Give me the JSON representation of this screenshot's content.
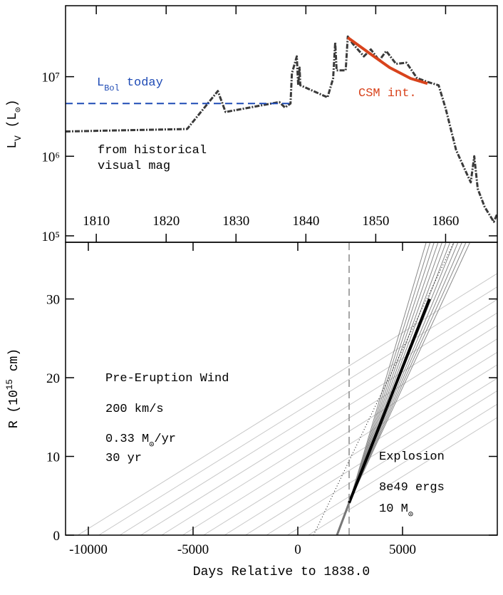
{
  "chart_data": [
    {
      "type": "line",
      "log_y": true,
      "xlim": [
        1805.6,
        1867.4
      ],
      "ylim": [
        83000,
        78000000
      ],
      "xticks": [
        1810,
        1820,
        1830,
        1840,
        1850,
        1860
      ],
      "yticks": [
        {
          "value": 100000,
          "label": "10⁵"
        },
        {
          "value": 1000000,
          "label": "10⁶"
        },
        {
          "value": 10000000,
          "label": "10⁷"
        }
      ],
      "y_label": [
        {
          "text": "L"
        },
        {
          "text": "V",
          "sub": true
        },
        {
          "text": " (L"
        },
        {
          "text": "⊙",
          "sub": true
        },
        {
          "text": ")"
        }
      ],
      "annotations": [
        {
          "parts": [
            {
              "text": "L"
            },
            {
              "text": "Bol",
              "sub": true
            },
            {
              "text": " today"
            }
          ],
          "color": "#1f4bb5"
        },
        {
          "parts": [
            {
              "text": "CSM int."
            }
          ],
          "color": "#d8431c"
        },
        {
          "parts": [
            {
              "text": "from historical"
            }
          ],
          "color": "#000000"
        },
        {
          "parts": [
            {
              "text": "visual mag"
            }
          ],
          "color": "#000000"
        }
      ],
      "series": [
        {
          "color": "#3a3a3a",
          "width": 3,
          "dash": "7 2 2 2",
          "x": [
            1805.6,
            1823,
            1827.4,
            1828.5,
            1836.2,
            1837,
            1837.8,
            1838,
            1838.7,
            1838.9,
            1839.1,
            1839.2,
            1843.1,
            1843.9,
            1844.2,
            1844.4,
            1845.7,
            1846,
            1846.7,
            1848.3,
            1849.3,
            1850.5,
            1851.5,
            1852.9,
            1854.4,
            1855.9,
            1857.4,
            1859,
            1860,
            1861.5,
            1862.6,
            1863.6,
            1864.1,
            1864.6,
            1865.6,
            1866.9,
            1867.4
          ],
          "values": [
            2050000,
            2200000,
            6600000,
            3600000,
            4800000,
            4100000,
            4600000,
            11000000,
            18000000,
            7800000,
            13000000,
            7800000,
            5500000,
            9500000,
            27000000,
            12000000,
            12000000,
            32000000,
            26000000,
            18000000,
            22000000,
            16000000,
            21000000,
            14500000,
            15000000,
            9600000,
            8600000,
            7800000,
            4000000,
            1200000,
            730000,
            470000,
            1000000,
            390000,
            230000,
            150000,
            190000
          ]
        },
        {
          "color": "#d8431c",
          "width": 4,
          "x": [
            1846,
            1849,
            1852,
            1855,
            1857.4
          ],
          "values": [
            31000000,
            20000000,
            13000000,
            9500000,
            8200000
          ]
        },
        {
          "color": "#1f4bb5",
          "width": 2,
          "dash": "10 6",
          "x": [
            1805.6,
            1838.1
          ],
          "values": [
            4600000,
            4600000
          ]
        }
      ]
    },
    {
      "type": "line",
      "log_y": false,
      "xlim": [
        -11088,
        9524
      ],
      "ylim": [
        0,
        37.2
      ],
      "xticks": [
        -10000,
        -5000,
        0,
        5000
      ],
      "yticks": [
        0,
        10,
        20,
        30
      ],
      "x_label": "Days Relative to 1838.0",
      "y_label": [
        {
          "text": "R (10"
        },
        {
          "text": "15",
          "sup": true
        },
        {
          "text": " cm)"
        }
      ],
      "annotations": [
        {
          "parts": [
            {
              "text": "Pre-Eruption Wind"
            }
          ],
          "color": "#000000"
        },
        {
          "parts": [
            {
              "text": "200 km/s"
            }
          ],
          "color": "#000000"
        },
        {
          "parts": [
            {
              "text": "0.33 M"
            },
            {
              "text": "⊙",
              "sub": true
            },
            {
              "text": "/yr"
            }
          ],
          "color": "#000000"
        },
        {
          "parts": [
            {
              "text": "30 yr"
            }
          ],
          "color": "#000000"
        },
        {
          "parts": [
            {
              "text": "Explosion"
            }
          ],
          "color": "#000000"
        },
        {
          "parts": [
            {
              "text": "8e49 ergs"
            }
          ],
          "color": "#000000"
        },
        {
          "parts": [
            {
              "text": "10 M"
            },
            {
              "text": "⊙",
              "sub": true
            }
          ],
          "color": "#000000"
        }
      ],
      "series": [
        {
          "color": "#c8c8c8",
          "width": 1,
          "x": [
            -10500,
            9500
          ],
          "values": [
            0,
            33.2
          ]
        },
        {
          "color": "#c8c8c8",
          "width": 1,
          "x": [
            -9500,
            9500
          ],
          "values": [
            0,
            31.5
          ]
        },
        {
          "color": "#c8c8c8",
          "width": 1,
          "x": [
            -8500,
            9500
          ],
          "values": [
            0,
            29.9
          ]
        },
        {
          "color": "#c8c8c8",
          "width": 1,
          "x": [
            -7500,
            9500
          ],
          "values": [
            0,
            28.2
          ]
        },
        {
          "color": "#c8c8c8",
          "width": 1,
          "x": [
            -6500,
            9500
          ],
          "values": [
            0,
            26.6
          ]
        },
        {
          "color": "#c8c8c8",
          "width": 1,
          "x": [
            -5500,
            9500
          ],
          "values": [
            0,
            24.9
          ]
        },
        {
          "color": "#c8c8c8",
          "width": 1,
          "x": [
            -4500,
            9500
          ],
          "values": [
            0,
            23.2
          ]
        },
        {
          "color": "#c8c8c8",
          "width": 1,
          "x": [
            -3500,
            9500
          ],
          "values": [
            0,
            21.6
          ]
        },
        {
          "color": "#c8c8c8",
          "width": 1,
          "x": [
            -2500,
            9500
          ],
          "values": [
            0,
            19.9
          ]
        },
        {
          "color": "#c8c8c8",
          "width": 1,
          "x": [
            -1500,
            9500
          ],
          "values": [
            0,
            18.3
          ]
        },
        {
          "color": "#c8c8c8",
          "width": 1,
          "x": [
            -500,
            9500
          ],
          "values": [
            0,
            16.6
          ]
        },
        {
          "color": "#c8c8c8",
          "width": 1,
          "x": [
            500,
            9500
          ],
          "values": [
            0,
            14.9
          ]
        },
        {
          "color": "#888888",
          "width": 1,
          "x": [
            2450,
            6130
          ],
          "values": [
            4.1,
            37.2
          ]
        },
        {
          "color": "#888888",
          "width": 1,
          "x": [
            2450,
            6320
          ],
          "values": [
            4.1,
            37.2
          ]
        },
        {
          "color": "#888888",
          "width": 1,
          "x": [
            2450,
            6510
          ],
          "values": [
            4.1,
            37.2
          ]
        },
        {
          "color": "#888888",
          "width": 1,
          "x": [
            2450,
            6700
          ],
          "values": [
            4.1,
            37.2
          ]
        },
        {
          "color": "#888888",
          "width": 1,
          "x": [
            2450,
            6890
          ],
          "values": [
            4.1,
            37.2
          ]
        },
        {
          "color": "#888888",
          "width": 1,
          "x": [
            2450,
            7080
          ],
          "values": [
            4.1,
            37.2
          ]
        },
        {
          "color": "#888888",
          "width": 1,
          "x": [
            2450,
            7270
          ],
          "values": [
            4.1,
            37.2
          ]
        },
        {
          "color": "#888888",
          "width": 1,
          "x": [
            2450,
            7460
          ],
          "values": [
            4.1,
            37.2
          ]
        },
        {
          "color": "#888888",
          "width": 1,
          "x": [
            2450,
            7650
          ],
          "values": [
            4.1,
            37.2
          ]
        },
        {
          "color": "#888888",
          "width": 1,
          "x": [
            2450,
            7840
          ],
          "values": [
            4.1,
            37.2
          ]
        },
        {
          "color": "#888888",
          "width": 1,
          "x": [
            2450,
            8030
          ],
          "values": [
            4.1,
            37.2
          ]
        },
        {
          "color": "#888888",
          "width": 1,
          "x": [
            2450,
            8220
          ],
          "values": [
            4.1,
            37.2
          ]
        },
        {
          "color": "#777777",
          "width": 3,
          "x": [
            1870,
            2450
          ],
          "values": [
            0,
            4.1
          ]
        },
        {
          "color": "#000000",
          "width": 4,
          "x": [
            2450,
            6290
          ],
          "values": [
            4.1,
            30
          ]
        },
        {
          "color": "#000000",
          "width": 1,
          "dash": "1 3",
          "x": [
            750,
            7450
          ],
          "values": [
            0,
            37.2
          ]
        },
        {
          "color": "#888888",
          "width": 1.5,
          "dash": "10 6",
          "x": [
            2450,
            2450
          ],
          "values": [
            0,
            37.2
          ]
        }
      ]
    }
  ]
}
